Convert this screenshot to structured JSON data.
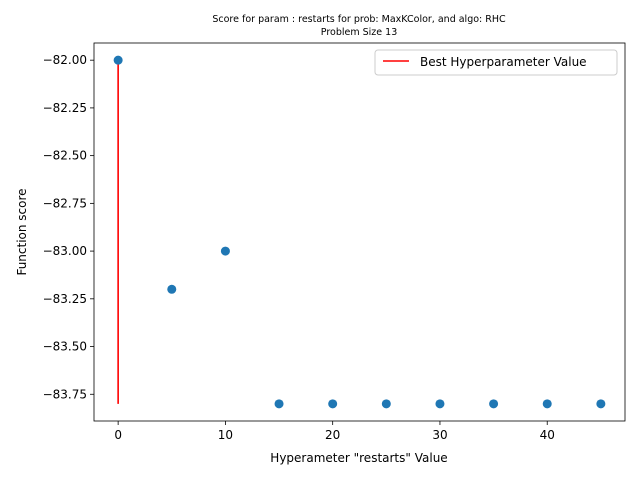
{
  "chart_data": {
    "type": "scatter",
    "title": "Score for param : restarts for prob: MaxKColor, and algo: RHC",
    "subtitle": "Problem Size 13",
    "xlabel": "Hyperameter \"restarts\" Value",
    "ylabel": "Function score",
    "xlim": [
      -2.25,
      47.25
    ],
    "ylim": [
      -83.89,
      -81.91
    ],
    "x_ticks": [
      0,
      10,
      20,
      30,
      40
    ],
    "x_tick_labels": [
      "0",
      "10",
      "20",
      "30",
      "40"
    ],
    "y_ticks": [
      -82.0,
      -82.25,
      -82.5,
      -82.75,
      -83.0,
      -83.25,
      -83.5,
      -83.75
    ],
    "y_tick_labels": [
      "−82.00",
      "−82.25",
      "−82.50",
      "−82.75",
      "−83.00",
      "−83.25",
      "−83.50",
      "−83.75"
    ],
    "series": [
      {
        "marker_color": "#1f77b4",
        "points": [
          {
            "x": 0,
            "y": -82.0
          },
          {
            "x": 5,
            "y": -83.2
          },
          {
            "x": 10,
            "y": -83.0
          },
          {
            "x": 15,
            "y": -83.8
          },
          {
            "x": 20,
            "y": -83.8
          },
          {
            "x": 25,
            "y": -83.8
          },
          {
            "x": 30,
            "y": -83.8
          },
          {
            "x": 35,
            "y": -83.8
          },
          {
            "x": 40,
            "y": -83.8
          },
          {
            "x": 45,
            "y": -83.8
          }
        ]
      }
    ],
    "best_line": {
      "name": "Best Hyperparameter Value",
      "color": "#ff0000",
      "x": 0,
      "y_from": -83.8,
      "y_to": -82.0
    },
    "legend": {
      "position": "top-right"
    },
    "grid": false
  }
}
